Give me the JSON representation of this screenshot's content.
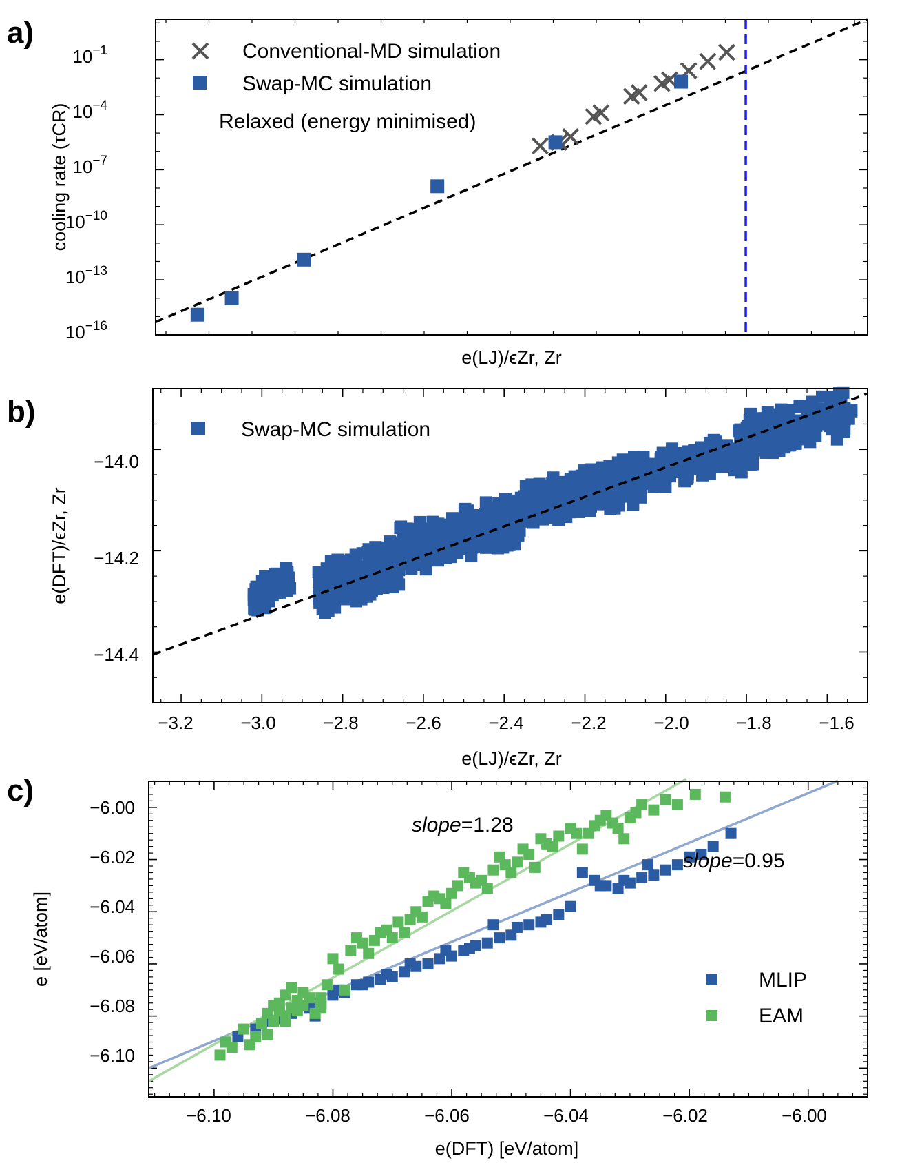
{
  "figure": {
    "panel_labels": [
      "a)",
      "b)",
      "c)"
    ]
  },
  "chart_data": [
    {
      "id": "a",
      "type": "scatter",
      "xlabel": "e(LJ)/ϵZr, Zr",
      "ylabel": "cooling rate (τCR)",
      "yscale": "log",
      "yticks": [
        {
          "exp": "−1"
        },
        {
          "exp": "−4"
        },
        {
          "exp": "−7"
        },
        {
          "exp": "−10"
        },
        {
          "exp": "−13"
        },
        {
          "exp": "−16"
        }
      ],
      "xlim": [
        -3.32,
        -1.45
      ],
      "ylim_log10": [
        -16,
        1.2
      ],
      "vline_x": -1.77,
      "vline_color": "#1f1fdd",
      "fit": {
        "x": [
          -3.32,
          -1.45
        ],
        "log10_y": [
          -15.3,
          1.2
        ],
        "style": "dashed"
      },
      "series": [
        {
          "name": "Conventional-MD simulation",
          "marker": "x",
          "color": "#555555",
          "x": [
            -2.31,
            -2.26,
            -2.23,
            -2.17,
            -2.15,
            -2.07,
            -2.05,
            -1.99,
            -1.97,
            -1.92,
            -1.87,
            -1.82
          ],
          "log10_y": [
            -5.7,
            -5.5,
            -5.2,
            -4.1,
            -3.9,
            -3.0,
            -2.8,
            -2.3,
            -2.1,
            -1.6,
            -1.1,
            -0.6
          ]
        },
        {
          "name": "Swap-MC simulation",
          "marker": "square",
          "color": "#2b5ca3",
          "x": [
            -3.21,
            -3.12,
            -2.93,
            -2.58,
            -2.27,
            -1.94
          ],
          "log10_y": [
            -14.9,
            -14.0,
            -11.9,
            -7.9,
            -5.5,
            -2.2
          ]
        }
      ],
      "annotation": "Relaxed (energy minimised)"
    },
    {
      "id": "b",
      "type": "scatter",
      "xlabel": "e(LJ)/ϵZr, Zr",
      "ylabel": "e(DFT)/ϵZr, Zr",
      "xlim": [
        -3.27,
        -1.5
      ],
      "ylim": [
        -14.5,
        -13.88
      ],
      "xticks": [
        "−3.2",
        "−3.0",
        "−2.8",
        "−2.6",
        "−2.4",
        "−2.2",
        "−2.0",
        "−1.8",
        "−1.6"
      ],
      "yticks": [
        "−14.0",
        "−14.2",
        "−14.4"
      ],
      "fit": {
        "x": [
          -3.27,
          -1.5
        ],
        "y": [
          -14.405,
          -13.89
        ],
        "style": "dashed"
      },
      "series": [
        {
          "name": "Swap-MC simulation",
          "marker": "square",
          "color": "#2b5ca3",
          "clusters": [
            {
              "x": [
                -3.02,
                -2.93
              ],
              "y": [
                -14.31,
                -14.24
              ],
              "n": 90
            },
            {
              "x": [
                -2.86,
                -2.66
              ],
              "y": [
                -14.31,
                -14.19
              ],
              "n": 220
            },
            {
              "x": [
                -2.66,
                -2.36
              ],
              "y": [
                -14.23,
                -14.11
              ],
              "n": 320
            },
            {
              "x": [
                -2.36,
                -2.06
              ],
              "y": [
                -14.14,
                -14.03
              ],
              "n": 320
            },
            {
              "x": [
                -2.06,
                -1.78
              ],
              "y": [
                -14.07,
                -13.98
              ],
              "n": 160
            },
            {
              "x": [
                -1.82,
                -1.54
              ],
              "y": [
                -14.01,
                -13.9
              ],
              "n": 220
            }
          ]
        }
      ]
    },
    {
      "id": "c",
      "type": "scatter",
      "xlabel": "e(DFT) [eV/atom]",
      "ylabel": "e [eV/atom]",
      "xlim": [
        -6.111,
        -5.99
      ],
      "ylim": [
        -6.111,
        -5.99
      ],
      "xticks": [
        "−6.10",
        "−6.08",
        "−6.06",
        "−6.04",
        "−6.02",
        "−6.00"
      ],
      "yticks": [
        "−6.00",
        "−6.02",
        "−6.04",
        "−6.06",
        "−6.08",
        "−6.10"
      ],
      "annotations": [
        {
          "prefix": "slope",
          "value": "=1.28"
        },
        {
          "prefix": "slope",
          "value": "=0.95"
        }
      ],
      "fits": [
        {
          "name": "MLIP fit",
          "slope": 0.95,
          "color": "#8fa8cf",
          "x": [
            -6.111,
            -5.995
          ],
          "y": [
            -6.1,
            -5.9898
          ]
        },
        {
          "name": "EAM fit",
          "slope": 1.28,
          "color": "#a8d8a2",
          "x": [
            -6.111,
            -6.0205
          ],
          "y": [
            -6.105,
            -5.9891
          ]
        }
      ],
      "series": [
        {
          "name": "MLIP",
          "marker": "square",
          "color": "#2b5ca3",
          "x": [
            -6.098,
            -6.096,
            -6.093,
            -6.091,
            -6.089,
            -6.087,
            -6.086,
            -6.084,
            -6.082,
            -6.08,
            -6.078,
            -6.076,
            -6.074,
            -6.072,
            -6.07,
            -6.068,
            -6.066,
            -6.064,
            -6.062,
            -6.06,
            -6.058,
            -6.056,
            -6.054,
            -6.052,
            -6.05,
            -6.047,
            -6.044,
            -6.042,
            -6.04,
            -6.038,
            -6.036,
            -6.034,
            -6.032,
            -6.03,
            -6.028,
            -6.026,
            -6.024,
            -6.022,
            -6.02,
            -6.018,
            -6.016,
            -6.013,
            -6.083,
            -6.079,
            -6.075,
            -6.071,
            -6.067,
            -6.061,
            -6.057,
            -6.053,
            -6.049,
            -6.045,
            -6.035,
            -6.031,
            -6.027
          ],
          "y": [
            -6.09,
            -6.088,
            -6.085,
            -6.082,
            -6.081,
            -6.079,
            -6.078,
            -6.077,
            -6.075,
            -6.072,
            -6.071,
            -6.068,
            -6.067,
            -6.066,
            -6.065,
            -6.063,
            -6.061,
            -6.06,
            -6.058,
            -6.057,
            -6.055,
            -6.053,
            -6.052,
            -6.05,
            -6.049,
            -6.045,
            -6.043,
            -6.041,
            -6.038,
            -6.025,
            -6.028,
            -6.03,
            -6.031,
            -6.029,
            -6.027,
            -6.026,
            -6.024,
            -6.022,
            -6.019,
            -6.018,
            -6.015,
            -6.01,
            -6.08,
            -6.07,
            -6.068,
            -6.064,
            -6.06,
            -6.055,
            -6.054,
            -6.045,
            -6.046,
            -6.044,
            -6.03,
            -6.028,
            -6.022
          ]
        },
        {
          "name": "EAM",
          "marker": "square",
          "color": "#5cb85c",
          "x": [
            -6.099,
            -6.098,
            -6.097,
            -6.095,
            -6.093,
            -6.092,
            -6.091,
            -6.09,
            -6.089,
            -6.089,
            -6.088,
            -6.088,
            -6.087,
            -6.087,
            -6.086,
            -6.086,
            -6.085,
            -6.084,
            -6.083,
            -6.082,
            -6.081,
            -6.08,
            -6.079,
            -6.078,
            -6.077,
            -6.076,
            -6.075,
            -6.074,
            -6.073,
            -6.072,
            -6.071,
            -6.07,
            -6.069,
            -6.068,
            -6.067,
            -6.066,
            -6.065,
            -6.064,
            -6.063,
            -6.062,
            -6.061,
            -6.06,
            -6.059,
            -6.058,
            -6.057,
            -6.056,
            -6.055,
            -6.054,
            -6.053,
            -6.052,
            -6.051,
            -6.05,
            -6.049,
            -6.048,
            -6.047,
            -6.046,
            -6.045,
            -6.044,
            -6.043,
            -6.042,
            -6.04,
            -6.039,
            -6.038,
            -6.037,
            -6.036,
            -6.035,
            -6.034,
            -6.033,
            -6.032,
            -6.031,
            -6.03,
            -6.029,
            -6.028,
            -6.026,
            -6.024,
            -6.022,
            -6.019,
            -6.014,
            -6.09,
            -6.085,
            -6.082,
            -6.088,
            -6.091,
            -6.094
          ],
          "y": [
            -6.095,
            -6.09,
            -6.092,
            -6.085,
            -6.088,
            -6.083,
            -6.079,
            -6.082,
            -6.078,
            -6.075,
            -6.08,
            -6.072,
            -6.077,
            -6.069,
            -6.074,
            -6.078,
            -6.076,
            -6.073,
            -6.079,
            -6.077,
            -6.068,
            -6.058,
            -6.062,
            -6.07,
            -6.055,
            -6.05,
            -6.052,
            -6.056,
            -6.051,
            -6.048,
            -6.047,
            -6.05,
            -6.044,
            -6.048,
            -6.043,
            -6.04,
            -6.042,
            -6.036,
            -6.034,
            -6.035,
            -6.037,
            -6.033,
            -6.03,
            -6.025,
            -6.027,
            -6.029,
            -6.028,
            -6.031,
            -6.024,
            -6.019,
            -6.022,
            -6.025,
            -6.021,
            -6.016,
            -6.018,
            -6.023,
            -6.012,
            -6.014,
            -6.015,
            -6.011,
            -6.008,
            -6.01,
            -6.016,
            -6.01,
            -6.007,
            -6.005,
            -6.003,
            -6.006,
            -6.008,
            -6.012,
            -6.004,
            -6.002,
            -5.999,
            -6.001,
            -5.997,
            -5.999,
            -5.995,
            -5.996,
            -6.076,
            -6.071,
            -6.073,
            -6.082,
            -6.087,
            -6.091
          ]
        }
      ]
    }
  ]
}
